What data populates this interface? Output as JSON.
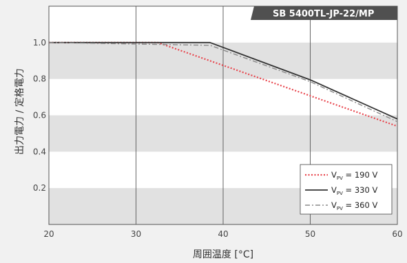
{
  "chart_data": {
    "type": "line",
    "title": "SB 5400TL-JP-22/MP",
    "xlabel": "周囲温度 [°C]",
    "ylabel": "出力電力 / 定格電力",
    "xlim": [
      20,
      60
    ],
    "ylim": [
      0,
      1.2
    ],
    "x_ticks": [
      "20",
      "30",
      "40",
      "50",
      "60"
    ],
    "y_ticks": [
      "1.0",
      "0.8",
      "0.6",
      "0.4",
      "0.2"
    ],
    "y_tick_values": [
      1.0,
      0.8,
      0.6,
      0.4,
      0.2
    ],
    "x_tick_values": [
      20,
      30,
      40,
      50,
      60
    ],
    "grid": "vertical lines at x ticks, alternating horizontal bands",
    "legend_position": "bottom-right",
    "series": [
      {
        "name": "V_PV = 190 V",
        "label_main": "V",
        "label_sub": "PV",
        "label_rest": " = 190 V",
        "style": "dotted",
        "color": "#e8434b",
        "x": [
          20,
          32.5,
          60
        ],
        "y": [
          1.0,
          1.0,
          0.54
        ]
      },
      {
        "name": "V_PV = 330 V",
        "label_main": "V",
        "label_sub": "PV",
        "label_rest": " = 330 V",
        "style": "solid",
        "color": "#333333",
        "x": [
          20,
          38.5,
          50,
          60
        ],
        "y": [
          1.0,
          1.0,
          0.795,
          0.58
        ]
      },
      {
        "name": "V_PV = 360 V",
        "label_main": "V",
        "label_sub": "PV",
        "label_rest": " = 360 V",
        "style": "dashdot",
        "color": "#8a8a8a",
        "x": [
          20,
          38.5,
          50,
          60
        ],
        "y": [
          1.0,
          0.985,
          0.785,
          0.565
        ]
      }
    ]
  }
}
